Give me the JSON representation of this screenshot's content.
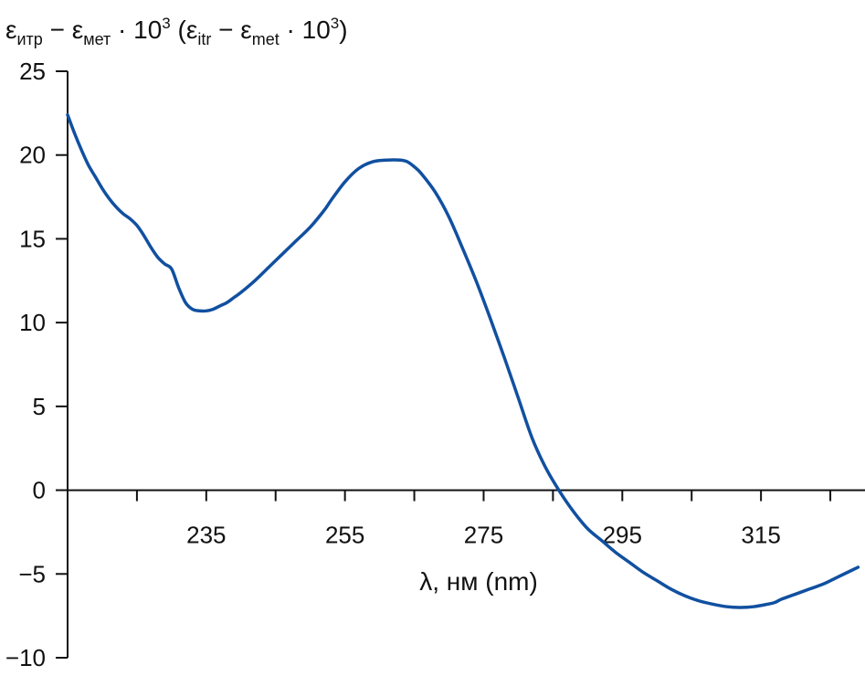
{
  "chart_data": {
    "type": "line",
    "title_parts": {
      "eps1": "ε",
      "sub1": "итр",
      "minus1": " − ",
      "eps2": "ε",
      "sub2": "мет",
      "dot1": " · 10",
      "sup1": "3",
      "paren_open": " (",
      "eps3": "ε",
      "sub3": "itr",
      "minus2": " − ",
      "eps4": "ε",
      "sub4": "met",
      "dot2": " · 10",
      "sup2": "3",
      "paren_close": ")"
    },
    "xlabel": "λ, нм (nm)",
    "xlim": [
      215,
      330
    ],
    "ylim": [
      -10,
      25
    ],
    "xticks": [
      235,
      255,
      275,
      295,
      315
    ],
    "xticks_minor": [
      225,
      245,
      265,
      285,
      305,
      325
    ],
    "yticks": [
      25,
      20,
      15,
      10,
      5,
      0,
      -5,
      -10
    ],
    "ytick_labels": [
      "25",
      "20",
      "15",
      "10",
      "5",
      "0",
      "−5",
      "−10"
    ],
    "grid": false,
    "series": [
      {
        "color": "#1150a0",
        "x": [
          215,
          216,
          217,
          218,
          219,
          220,
          221,
          222,
          223,
          224,
          225,
          226,
          227,
          228,
          229,
          230,
          231,
          232,
          233,
          234,
          235,
          236,
          237,
          238,
          239,
          240,
          242,
          244,
          246,
          248,
          250,
          252,
          253,
          255,
          257,
          259,
          261,
          263,
          264,
          265,
          266,
          268,
          270,
          272,
          274,
          276,
          278,
          280,
          282,
          284,
          286,
          288,
          290,
          292,
          294,
          296,
          298,
          300,
          302,
          304,
          306,
          308,
          310,
          312,
          314,
          316,
          317,
          318,
          320,
          322,
          324,
          326,
          328,
          329
        ],
        "y": [
          22.4,
          21.3,
          20.3,
          19.4,
          18.7,
          18.0,
          17.4,
          16.9,
          16.5,
          16.2,
          15.8,
          15.2,
          14.5,
          13.9,
          13.5,
          13.2,
          12.1,
          11.2,
          10.8,
          10.7,
          10.7,
          10.8,
          11.0,
          11.2,
          11.5,
          11.8,
          12.5,
          13.3,
          14.1,
          14.9,
          15.7,
          16.7,
          17.3,
          18.4,
          19.2,
          19.6,
          19.7,
          19.7,
          19.6,
          19.3,
          18.9,
          17.8,
          16.3,
          14.4,
          12.4,
          10.2,
          7.9,
          5.5,
          3.1,
          1.3,
          -0.1,
          -1.3,
          -2.3,
          -3.0,
          -3.7,
          -4.3,
          -4.9,
          -5.4,
          -5.9,
          -6.3,
          -6.6,
          -6.8,
          -6.95,
          -7.0,
          -6.95,
          -6.8,
          -6.7,
          -6.5,
          -6.2,
          -5.9,
          -5.6,
          -5.2,
          -4.8,
          -4.6
        ]
      }
    ]
  }
}
